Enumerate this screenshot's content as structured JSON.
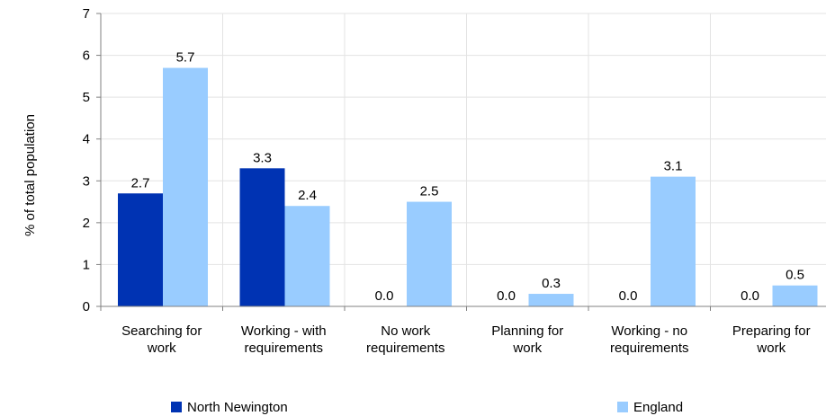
{
  "chart_data": {
    "type": "bar",
    "title": "",
    "xlabel": "",
    "ylabel": "% of total population",
    "ylim": [
      0,
      7
    ],
    "yticks": [
      0,
      1,
      2,
      3,
      4,
      5,
      6,
      7
    ],
    "ytick_labels": [
      "0",
      "1",
      "2",
      "3",
      "4",
      "5",
      "6",
      "7"
    ],
    "grid": true,
    "legend_position": "bottom",
    "categories": [
      [
        "Searching for",
        "work"
      ],
      [
        "Working - with",
        "requirements"
      ],
      [
        "No work",
        "requirements"
      ],
      [
        "Planning for",
        "work"
      ],
      [
        "Working - no",
        "requirements"
      ],
      [
        "Preparing for",
        "work"
      ]
    ],
    "series": [
      {
        "name": "North Newington",
        "color": "#0033b3",
        "values": [
          2.7,
          3.3,
          0.0,
          0.0,
          0.0,
          0.0
        ],
        "labels": [
          "2.7",
          "3.3",
          "0.0",
          "0.0",
          "0.0",
          "0.0"
        ]
      },
      {
        "name": "England",
        "color": "#99ccff",
        "values": [
          5.7,
          2.4,
          2.5,
          0.3,
          3.1,
          0.5
        ],
        "labels": [
          "5.7",
          "2.4",
          "2.5",
          "0.3",
          "3.1",
          "0.5"
        ]
      }
    ]
  }
}
